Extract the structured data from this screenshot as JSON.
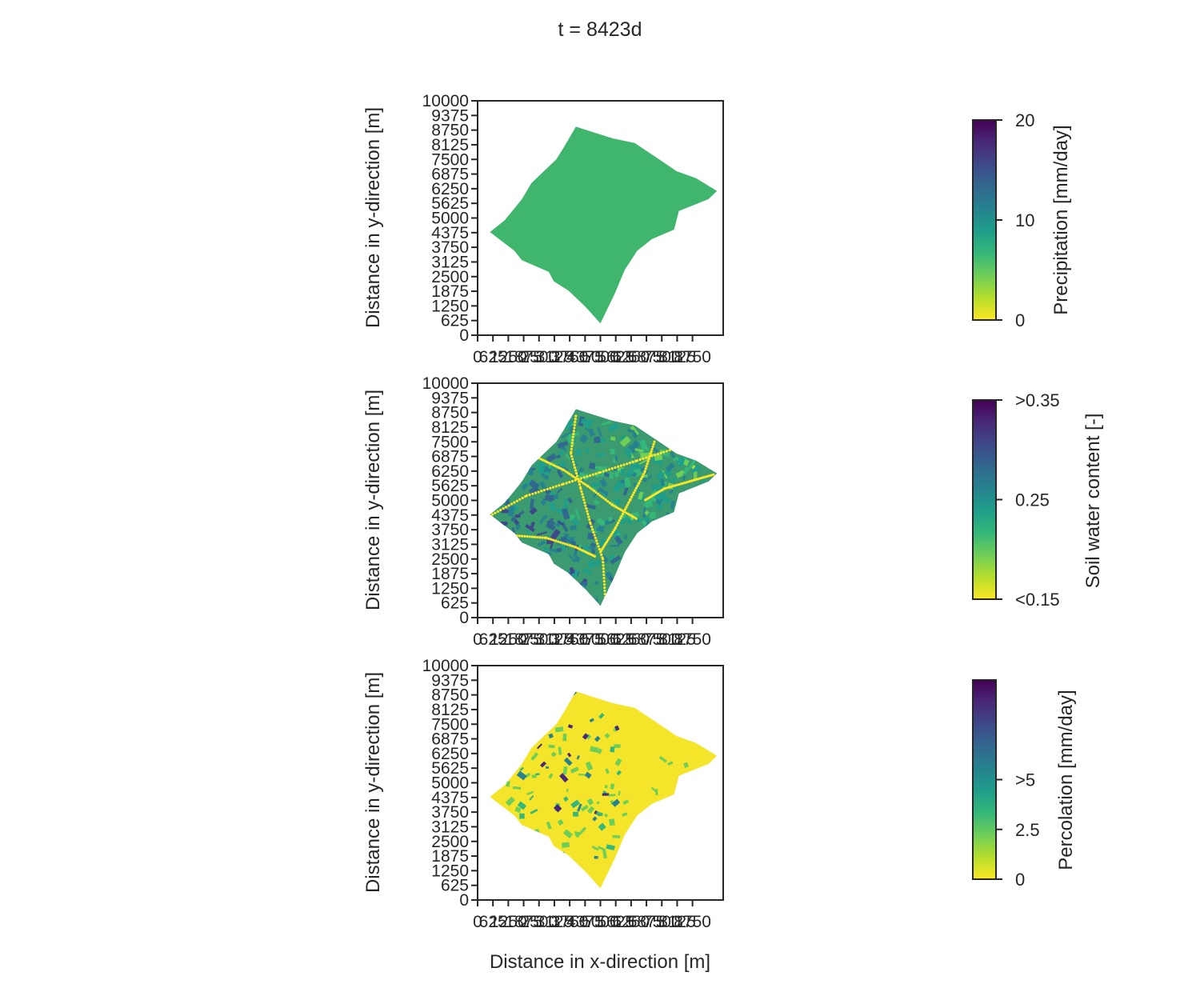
{
  "figure": {
    "suptitle": "t = 8423d"
  },
  "chart_data": [
    {
      "type": "heatmap",
      "panel": "precipitation",
      "xlabel": "",
      "ylabel": "Distance in y-direction [m]",
      "xlim": [
        0,
        10000
      ],
      "ylim": [
        0,
        10000
      ],
      "x_ticks": [
        0,
        625,
        1250,
        1875,
        2500,
        3125,
        3750,
        4375,
        5000,
        5625,
        6250,
        6875,
        7500,
        8125,
        8750
      ],
      "x_tick_labels": [
        "0",
        "625",
        "1250",
        "1875",
        "2500",
        "3125",
        "3750",
        "4375",
        "5000",
        "5625",
        "6250",
        "6875",
        "7500",
        "8125",
        "8750"
      ],
      "y_ticks": [
        0,
        625,
        1250,
        1875,
        2500,
        3125,
        3750,
        4375,
        5000,
        5625,
        6250,
        6875,
        7500,
        8125,
        8750,
        9375,
        10000
      ],
      "y_tick_labels": [
        "0",
        "625",
        "1250",
        "1875",
        "2500",
        "3125",
        "3750",
        "4375",
        "5000",
        "5625",
        "6250",
        "6875",
        "7500",
        "8125",
        "8750",
        "9375",
        "10000"
      ],
      "colorbar": {
        "label": "Precipitation [mm/day]",
        "range": [
          0,
          20
        ],
        "ticks": [
          0,
          10,
          20
        ],
        "tick_labels": [
          "0",
          "10",
          "20"
        ],
        "colormap": "viridis_r"
      },
      "field_description": "uniform values around 8 mm/day with stream channels near 0"
    },
    {
      "type": "heatmap",
      "panel": "soil-water-content",
      "xlabel": "",
      "ylabel": "Distance in y-direction [m]",
      "xlim": [
        0,
        10000
      ],
      "ylim": [
        0,
        10000
      ],
      "x_ticks": [
        0,
        625,
        1250,
        1875,
        2500,
        3125,
        3750,
        4375,
        5000,
        5625,
        6250,
        6875,
        7500,
        8125,
        8750
      ],
      "x_tick_labels": [
        "0",
        "625",
        "1250",
        "1875",
        "2500",
        "3125",
        "3750",
        "4375",
        "5000",
        "5625",
        "6250",
        "6875",
        "7500",
        "8125",
        "8750"
      ],
      "y_ticks": [
        0,
        625,
        1250,
        1875,
        2500,
        3125,
        3750,
        4375,
        5000,
        5625,
        6250,
        6875,
        7500,
        8125,
        8750,
        9375,
        10000
      ],
      "y_tick_labels": [
        "0",
        "625",
        "1250",
        "1875",
        "2500",
        "3125",
        "3750",
        "4375",
        "5000",
        "5625",
        "6250",
        "6875",
        "7500",
        "8125",
        "8750",
        "9375",
        "10000"
      ],
      "colorbar": {
        "label": "Soil water content [-]",
        "range": [
          0.15,
          0.35
        ],
        "ticks": [
          0.15,
          0.25,
          0.35
        ],
        "tick_labels": [
          "<0.15",
          "0.25",
          ">0.35"
        ],
        "colormap": "viridis_r"
      },
      "field_description": "heterogeneous 0.15–0.35, wetter (dark) in the south-west"
    },
    {
      "type": "heatmap",
      "panel": "percolation",
      "xlabel": "Distance in x-direction [m]",
      "ylabel": "Distance in y-direction [m]",
      "xlim": [
        0,
        10000
      ],
      "ylim": [
        0,
        10000
      ],
      "x_ticks": [
        0,
        625,
        1250,
        1875,
        2500,
        3125,
        3750,
        4375,
        5000,
        5625,
        6250,
        6875,
        7500,
        8125,
        8750
      ],
      "x_tick_labels": [
        "0",
        "625",
        "1250",
        "1875",
        "2500",
        "3125",
        "3750",
        "4375",
        "5000",
        "5625",
        "6250",
        "6875",
        "7500",
        "8125",
        "8750"
      ],
      "y_ticks": [
        0,
        625,
        1250,
        1875,
        2500,
        3125,
        3750,
        4375,
        5000,
        5625,
        6250,
        6875,
        7500,
        8125,
        8750,
        9375,
        10000
      ],
      "y_tick_labels": [
        "0",
        "625",
        "1250",
        "1875",
        "2500",
        "3125",
        "3750",
        "4375",
        "5000",
        "5625",
        "6250",
        "6875",
        "7500",
        "8125",
        "8750",
        "9375",
        "10000"
      ],
      "colorbar": {
        "label": "Percolation [mm/day]",
        "range": [
          0,
          10
        ],
        "ticks": [
          0,
          2.5,
          5
        ],
        "tick_labels": [
          "0",
          "2.5",
          ">5"
        ],
        "colormap": "viridis_r"
      },
      "field_description": "mostly 0, patches up to about 5 in the south-west"
    }
  ],
  "catchment_outline_m": [
    [
      4000,
      8900
    ],
    [
      4600,
      8700
    ],
    [
      5500,
      8400
    ],
    [
      6400,
      8200
    ],
    [
      7400,
      7500
    ],
    [
      8100,
      7000
    ],
    [
      8900,
      6700
    ],
    [
      9750,
      6150
    ],
    [
      9400,
      5800
    ],
    [
      8200,
      5300
    ],
    [
      8000,
      4500
    ],
    [
      7100,
      4100
    ],
    [
      6500,
      3600
    ],
    [
      6000,
      2800
    ],
    [
      5600,
      1800
    ],
    [
      5000,
      500
    ],
    [
      4400,
      1200
    ],
    [
      3700,
      1900
    ],
    [
      3100,
      2300
    ],
    [
      2900,
      2700
    ],
    [
      1800,
      3200
    ],
    [
      1500,
      3600
    ],
    [
      500,
      4400
    ],
    [
      1100,
      4900
    ],
    [
      1800,
      5800
    ],
    [
      2200,
      6500
    ],
    [
      2700,
      7000
    ],
    [
      3200,
      7500
    ],
    [
      3500,
      8000
    ]
  ],
  "colors": {
    "viridis": [
      "#440154",
      "#482878",
      "#3e4989",
      "#31688e",
      "#26828e",
      "#1f9e89",
      "#35b779",
      "#6ece58",
      "#b5de2b",
      "#fde725"
    ],
    "precip_fill": "#3fb56e",
    "stream": "#fde725",
    "axis": "#262626"
  }
}
